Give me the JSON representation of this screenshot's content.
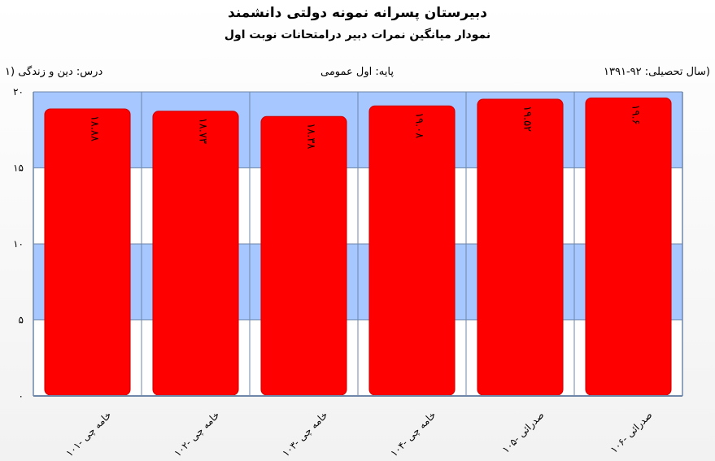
{
  "header": {
    "title": "دبیرستان پسرانه نمونه دولتی دانشمند",
    "subtitle": "نمودار میانگین نمرات دبیر درامتحانات نوبت اول"
  },
  "info": {
    "year": "(سال تحصیلی: ۹۲-۱۳۹۱",
    "grade": "پایه: اول عمومی",
    "course": "درس: دین  و زندگی (۱"
  },
  "colors": {
    "bar": "#ff0000",
    "band": "#a6c7ff",
    "grid": "#6f87a8"
  },
  "chart_data": {
    "type": "bar",
    "title": "نمودار میانگین نمرات دبیر درامتحانات نوبت اول",
    "xlabel": "",
    "ylabel": "",
    "ylim": [
      0,
      20
    ],
    "yticks": [
      0,
      5,
      10,
      15,
      20
    ],
    "ytick_labels": [
      "۰",
      "۵",
      "۱۰",
      "۱۵",
      "۲۰"
    ],
    "categories": [
      "خامه چی -۱۰۱",
      "خامه چی -۱۰۲",
      "خامه چی -۱۰۳",
      "خامه چی -۱۰۴",
      "صدرائی -۱۰۵",
      "صدرائی -۱۰۶"
    ],
    "values": [
      18.88,
      18.73,
      18.38,
      19.08,
      19.52,
      19.6
    ],
    "value_labels": [
      "۱۸.۸۸",
      "۱۸.۷۳",
      "۱۸.۳۸",
      "۱۹.۰۸",
      "۱۹.۵۲",
      "۱۹.۶"
    ],
    "grid": true,
    "legend": "none"
  }
}
